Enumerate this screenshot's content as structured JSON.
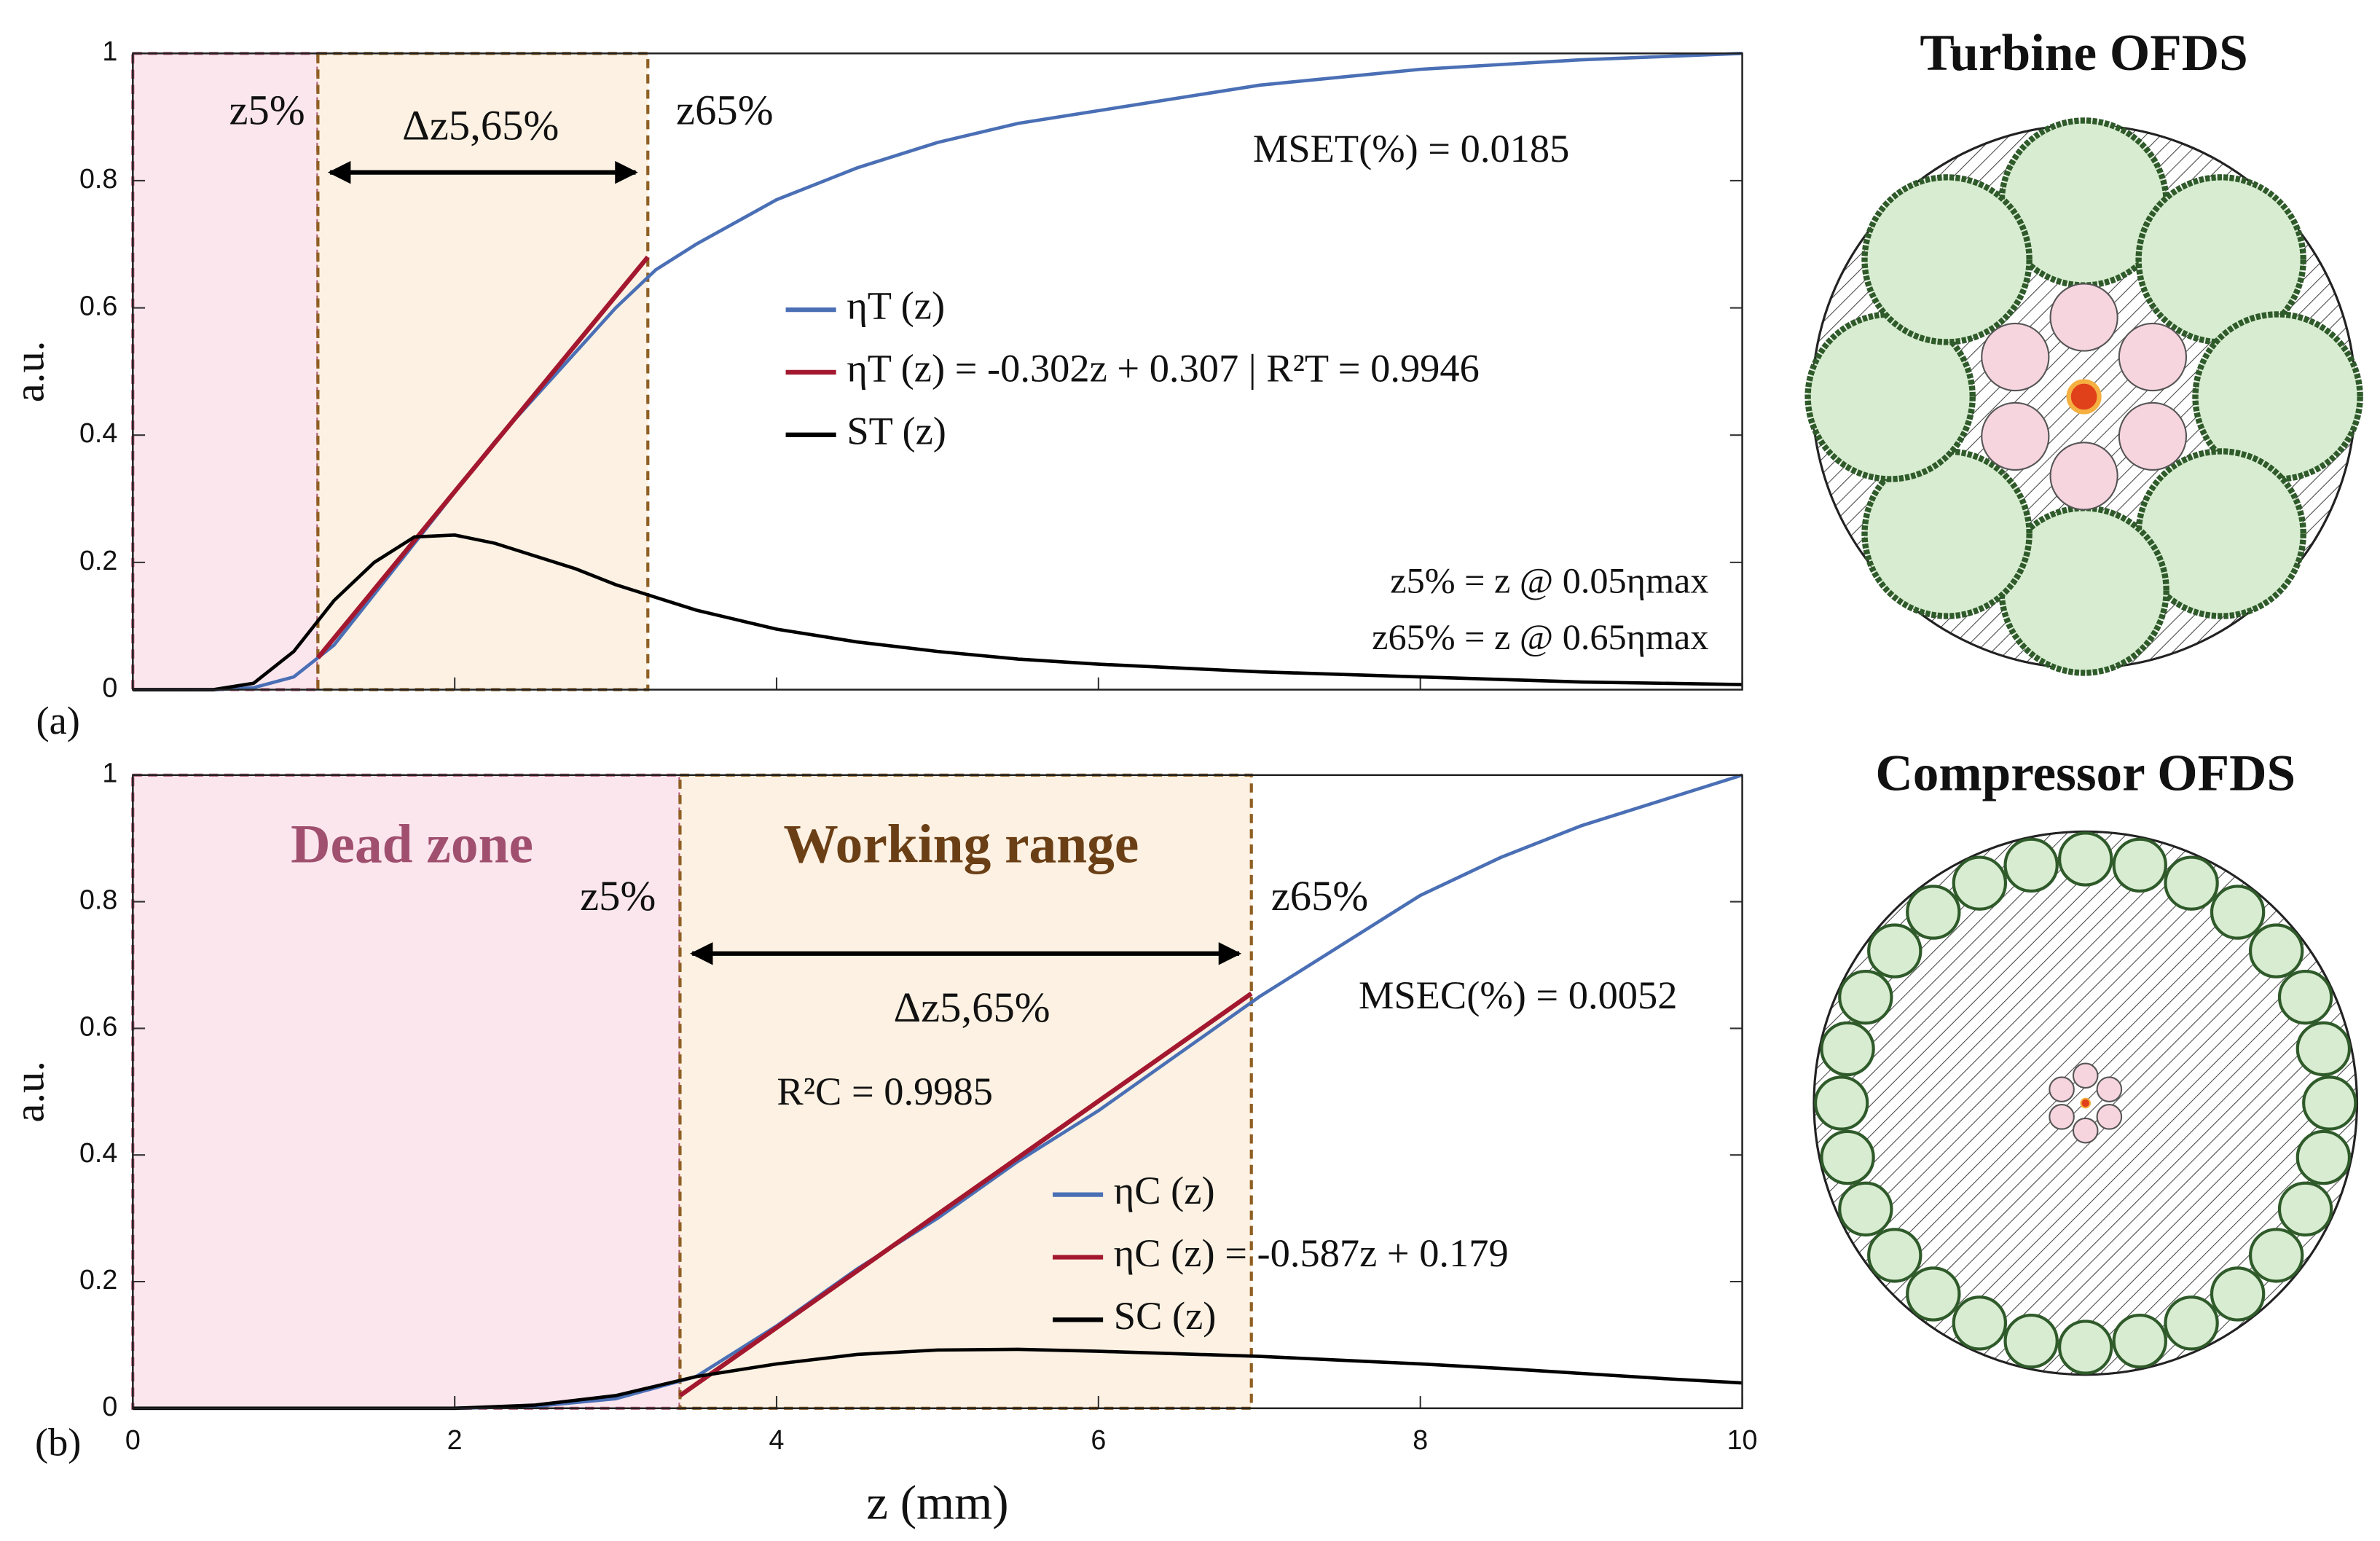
{
  "chart_data": [
    {
      "type": "line",
      "panel_label": "(a)",
      "ylabel": "a.u.",
      "xlim": [
        0,
        10
      ],
      "ylim": [
        0,
        1
      ],
      "xticks": [
        0,
        2,
        4,
        6,
        8,
        10
      ],
      "yticks": [
        0,
        0.2,
        0.4,
        0.6,
        0.8,
        1
      ],
      "legend": "center",
      "x": [
        0,
        0.5,
        0.75,
        1,
        1.25,
        1.5,
        1.75,
        2,
        2.25,
        2.5,
        2.75,
        3,
        3.25,
        3.5,
        4,
        4.5,
        5,
        5.5,
        6,
        7,
        8,
        9,
        10
      ],
      "series": [
        {
          "name": "ηT (z)",
          "color": "#4a6fb5",
          "values": [
            0,
            0,
            0.003,
            0.02,
            0.07,
            0.15,
            0.23,
            0.31,
            0.39,
            0.46,
            0.53,
            0.6,
            0.66,
            0.7,
            0.77,
            0.82,
            0.86,
            0.89,
            0.91,
            0.95,
            0.975,
            0.99,
            1.0
          ]
        },
        {
          "name": "ηT (z) = -0.302z + 0.307 | R²T = 0.9946",
          "color": "#a3182f",
          "x": [
            1.15,
            3.2
          ],
          "values": [
            0.05,
            0.68
          ]
        },
        {
          "name": "ST (z)",
          "color": "#000000",
          "values": [
            0,
            0,
            0.01,
            0.06,
            0.14,
            0.2,
            0.24,
            0.243,
            0.23,
            0.21,
            0.19,
            0.165,
            0.145,
            0.125,
            0.095,
            0.075,
            0.06,
            0.048,
            0.04,
            0.028,
            0.02,
            0.012,
            0.008
          ]
        }
      ],
      "regions": [
        {
          "x": [
            0,
            1.15
          ],
          "color": "#fbe6ee",
          "edge": "#b45c7a"
        },
        {
          "x": [
            1.15,
            3.2
          ],
          "color": "#fcf1e2",
          "edge": "#8f5f22"
        }
      ],
      "annotations": [
        "z5%",
        "Δz5,65%",
        "z65%",
        "MSET(%) = 0.0185",
        "z5% = z @ 0.05ηmax",
        "z65% = z @ 0.65ηmax"
      ]
    },
    {
      "type": "line",
      "panel_label": "(b)",
      "ylabel": "a.u.",
      "xlabel": "z (mm)",
      "xlim": [
        0,
        10
      ],
      "ylim": [
        0,
        1
      ],
      "xticks": [
        0,
        2,
        4,
        6,
        8,
        10
      ],
      "yticks": [
        0,
        0.2,
        0.4,
        0.6,
        0.8,
        1
      ],
      "legend": "lower center",
      "x": [
        0,
        2,
        2.5,
        3,
        3.5,
        4,
        4.5,
        5,
        5.5,
        6,
        6.5,
        7,
        7.5,
        8,
        8.5,
        9,
        9.5,
        10
      ],
      "series": [
        {
          "name": "ηC (z)",
          "color": "#4a6fb5",
          "values": [
            0,
            0,
            0.003,
            0.015,
            0.05,
            0.13,
            0.22,
            0.3,
            0.39,
            0.47,
            0.56,
            0.65,
            0.73,
            0.81,
            0.87,
            0.92,
            0.96,
            1.0
          ]
        },
        {
          "name": "ηC (z) = -0.587z + 0.179",
          "color": "#a3182f",
          "x": [
            3.4,
            6.95
          ],
          "values": [
            0.02,
            0.655
          ]
        },
        {
          "name": "SC (z)",
          "color": "#000000",
          "values": [
            0,
            0,
            0.005,
            0.02,
            0.05,
            0.07,
            0.085,
            0.092,
            0.093,
            0.09,
            0.086,
            0.082,
            0.076,
            0.07,
            0.063,
            0.055,
            0.047,
            0.04
          ]
        }
      ],
      "regions": [
        {
          "x": [
            0,
            3.4
          ],
          "color": "#fbe6ee",
          "edge": "#b45c7a",
          "label": "Dead zone",
          "label_color": "#a0506e"
        },
        {
          "x": [
            3.4,
            6.95
          ],
          "color": "#fcf1e2",
          "edge": "#8f5f22",
          "label": "Working range",
          "label_color": "#6b3f16"
        }
      ],
      "annotations": [
        "z5%",
        "z65%",
        "Δz5,65%",
        "MSEC(%) = 0.0052",
        "R²C = 0.9985"
      ]
    }
  ],
  "diagrams": [
    {
      "title": "Turbine OFDS"
    },
    {
      "title": "Compressor OFDS"
    }
  ]
}
